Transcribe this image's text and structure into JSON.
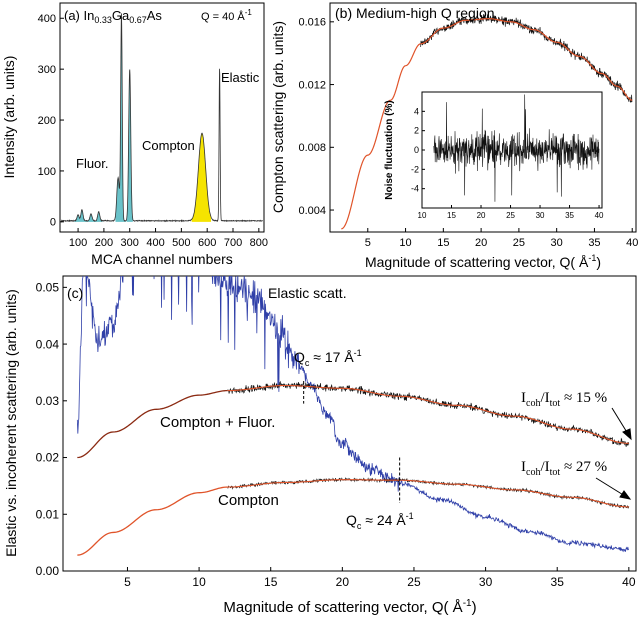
{
  "colors": {
    "axis": "#000000",
    "noisy": "#000000",
    "fit": "#e0542a",
    "fit_dark": "#8b2a12",
    "elastic_blue": "#2f3fa8",
    "cyan": "#4fb7c0",
    "yellow": "#f5e400"
  },
  "chart_data": [
    {
      "id": "a",
      "type": "line",
      "panel_label": "(a) In",
      "formula": {
        "in_sub": "0.33",
        "ga": "Ga",
        "ga_sub": "0.67",
        "as": "As"
      },
      "q_note": "Q = 40 Å",
      "q_note_sup": "-1",
      "xlabel": "MCA channel numbers",
      "ylabel": "Intensity (arb. units)",
      "xlim": [
        30,
        820
      ],
      "ylim": [
        -20,
        430
      ],
      "xticks": [
        "100",
        "200",
        "300",
        "400",
        "500",
        "600",
        "700",
        "800"
      ],
      "xtick_values": [
        100,
        200,
        300,
        400,
        500,
        600,
        700,
        800
      ],
      "yticks": [
        "0",
        "100",
        "200",
        "300",
        "400"
      ],
      "ytick_values": [
        0,
        100,
        200,
        300,
        400
      ],
      "annotations": {
        "fluor": "Fluor.",
        "compton": "Compton",
        "elastic": "Elastic"
      },
      "peaks": [
        {
          "x": 100,
          "y": 12,
          "w": 4
        },
        {
          "x": 115,
          "y": 22,
          "w": 4
        },
        {
          "x": 150,
          "y": 14,
          "w": 4
        },
        {
          "x": 180,
          "y": 18,
          "w": 4
        },
        {
          "x": 255,
          "y": 85,
          "w": 5
        },
        {
          "x": 268,
          "y": 405,
          "w": 3
        },
        {
          "x": 300,
          "y": 298,
          "w": 4
        },
        {
          "x": 580,
          "y": 172,
          "w": 14
        },
        {
          "x": 648,
          "y": 302,
          "w": 2
        }
      ],
      "baseline": 2
    },
    {
      "id": "b",
      "type": "line",
      "title": "(b) Medium-high Q region",
      "xlabel": "Magnitude of scattering vector, Q( Å",
      "xlabel_sup": "-1",
      "xlabel_end": ")",
      "ylabel": "Compton scattering (arb. units)",
      "xlim": [
        0,
        40.5
      ],
      "ylim": [
        0.0026,
        0.0172
      ],
      "xticks": [
        "5",
        "10",
        "15",
        "20",
        "25",
        "30",
        "35",
        "40"
      ],
      "xtick_values": [
        5,
        10,
        15,
        20,
        25,
        30,
        35,
        40
      ],
      "yticks": [
        "0.004",
        "0.008",
        "0.012",
        "0.016"
      ],
      "ytick_values": [
        0.004,
        0.008,
        0.012,
        0.016
      ],
      "series": [
        {
          "kind": "smooth",
          "points": [
            [
              1.5,
              0.0028
            ],
            [
              5,
              0.0075
            ],
            [
              8,
              0.011
            ],
            [
              10,
              0.0132
            ],
            [
              12,
              0.0146
            ]
          ]
        },
        {
          "kind": "noisy",
          "points": [
            [
              12,
              0.0146
            ],
            [
              15,
              0.0156
            ],
            [
              18,
              0.0161
            ],
            [
              21,
              0.0162
            ],
            [
              24,
              0.016
            ],
            [
              27,
              0.0155
            ],
            [
              30,
              0.0147
            ],
            [
              33,
              0.0138
            ],
            [
              36,
              0.0127
            ],
            [
              38,
              0.0119
            ],
            [
              40,
              0.011
            ]
          ],
          "noise": 0.0004
        }
      ],
      "inset": {
        "ylabel": "Noise fluctuation (%)",
        "xlim": [
          10,
          40.5
        ],
        "ylim": [
          -6,
          6
        ],
        "xticks": [
          "10",
          "15",
          "20",
          "25",
          "30",
          "35",
          "40"
        ],
        "xtick_values": [
          10,
          15,
          20,
          25,
          30,
          35,
          40
        ],
        "yticks": [
          "-4",
          "-2",
          "0",
          "2",
          "4"
        ],
        "ytick_values": [
          -4,
          -2,
          0,
          2,
          4
        ]
      }
    },
    {
      "id": "c",
      "type": "line",
      "panel_label": "(c)",
      "xlabel": "Magnitude of scattering vector, Q( Å",
      "xlabel_sup": "-1",
      "xlabel_end": ")",
      "ylabel": "Elastic vs. incoherent scattering (arb. units)",
      "xlim": [
        0.5,
        40.5
      ],
      "ylim": [
        0,
        0.052
      ],
      "xticks": [
        "5",
        "10",
        "15",
        "20",
        "25",
        "30",
        "35",
        "40"
      ],
      "xtick_values": [
        5,
        10,
        15,
        20,
        25,
        30,
        35,
        40
      ],
      "yticks": [
        "0.00",
        "0.01",
        "0.02",
        "0.03",
        "0.04",
        "0.05"
      ],
      "ytick_values": [
        0,
        0.01,
        0.02,
        0.03,
        0.04,
        0.05
      ],
      "annotations": {
        "elastic": "Elastic scatt.",
        "compton_fluor": "Compton + Fluor.",
        "compton": "Compton",
        "qc17": "Q",
        "qc17_sub": "c",
        "qc17_text": " ≈ 17 Å",
        "qc17_sup": "-1",
        "qc24": "Q",
        "qc24_sub": "c",
        "qc24_text": " ≈ 24 Å",
        "qc24_sup": "-1",
        "ratio_label": "I",
        "coh_sub": "coh",
        "tot_sub": "tot",
        "ratio15": " ≈ 15 %",
        "ratio27": " ≈ 27 %",
        "divider": "/I"
      },
      "series": [
        {
          "name": "",
          "kind": "elastic",
          "points": [
            [
              1.5,
              0.026
            ],
            [
              2,
              0.055
            ],
            [
              3,
              0.04
            ],
            [
              4,
              0.044
            ],
            [
              5,
              0.055
            ],
            [
              10,
              0.055
            ],
            [
              12.5,
              0.05
            ],
            [
              14,
              0.048
            ],
            [
              15.5,
              0.043
            ],
            [
              17,
              0.036
            ],
            [
              18,
              0.032
            ],
            [
              19,
              0.027
            ],
            [
              20,
              0.022
            ],
            [
              22,
              0.018
            ],
            [
              24,
              0.0155
            ],
            [
              27,
              0.0125
            ],
            [
              30,
              0.0095
            ],
            [
              33,
              0.007
            ],
            [
              36,
              0.005
            ],
            [
              40,
              0.0038
            ]
          ]
        },
        {
          "name": "",
          "kind": "cf_smooth",
          "points": [
            [
              1.5,
              0.02
            ],
            [
              4,
              0.0245
            ],
            [
              7,
              0.0285
            ],
            [
              10,
              0.031
            ],
            [
              12,
              0.0318
            ]
          ]
        },
        {
          "name": "",
          "kind": "cf_noisy",
          "points": [
            [
              12,
              0.0318
            ],
            [
              16,
              0.0327
            ],
            [
              20,
              0.0322
            ],
            [
              24,
              0.0308
            ],
            [
              28,
              0.0292
            ],
            [
              32,
              0.0273
            ],
            [
              36,
              0.025
            ],
            [
              40,
              0.0225
            ]
          ],
          "noise": 0.0009
        },
        {
          "name": "",
          "kind": "c_smooth",
          "points": [
            [
              1.5,
              0.0028
            ],
            [
              4,
              0.0068
            ],
            [
              7,
              0.0108
            ],
            [
              10,
              0.0138
            ],
            [
              12,
              0.0148
            ]
          ]
        },
        {
          "name": "",
          "kind": "c_noisy",
          "points": [
            [
              12,
              0.0148
            ],
            [
              16,
              0.0156
            ],
            [
              20,
              0.0161
            ],
            [
              24,
              0.016
            ],
            [
              28,
              0.0153
            ],
            [
              32,
              0.0143
            ],
            [
              36,
              0.013
            ],
            [
              40,
              0.0113
            ]
          ],
          "noise": 0.0004
        }
      ]
    }
  ]
}
